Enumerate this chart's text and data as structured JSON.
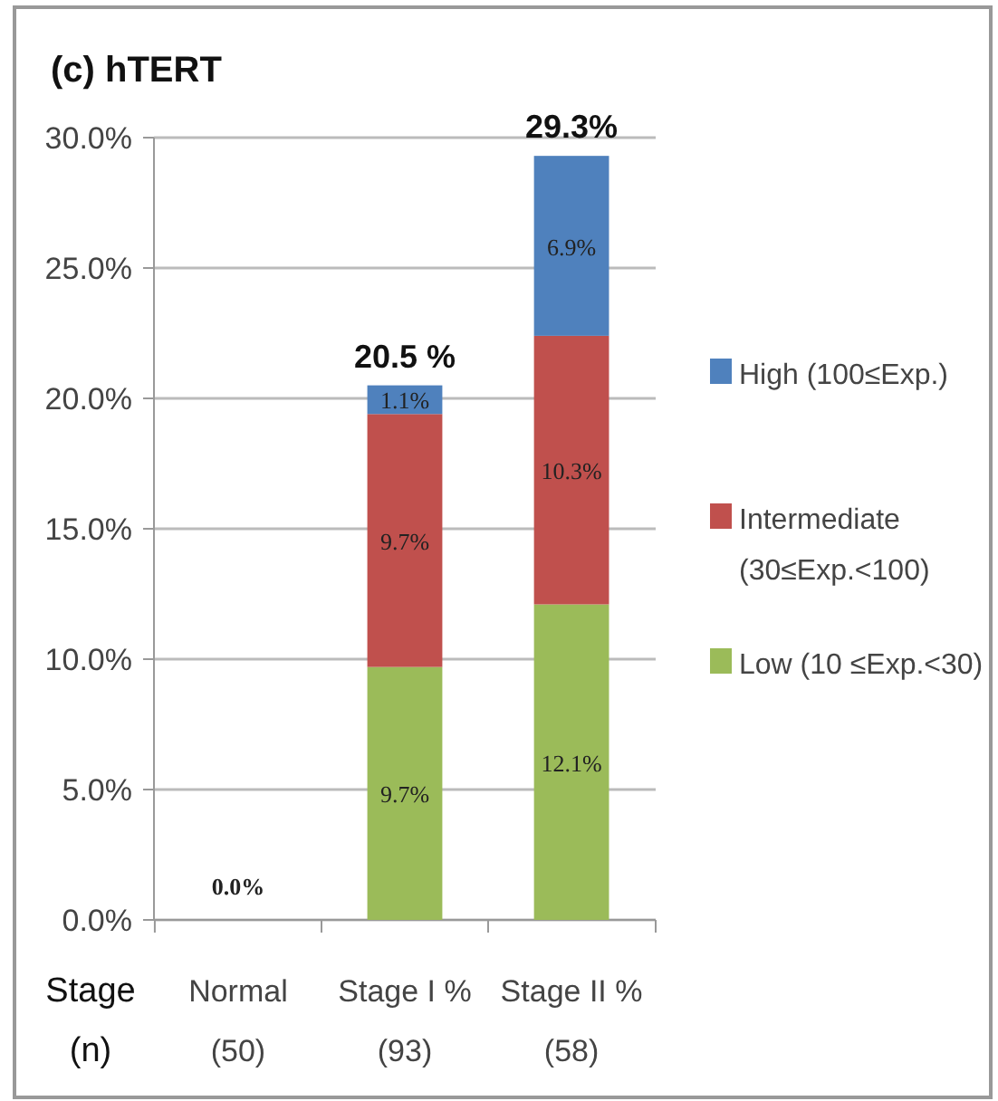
{
  "chart_data": {
    "type": "bar",
    "title": "(c) hTERT",
    "xlabel": "Stage\n(n)",
    "categories": [
      "Normal\n(50)",
      "Stage I %\n(93)",
      "Stage II %\n(58)"
    ],
    "stacked": true,
    "series": [
      {
        "name": "Low (10 ≤Exp.<30)",
        "color": "#9bbb59",
        "values": [
          0,
          9.7,
          12.1
        ],
        "value_labels": [
          "0.0%",
          "9.7%",
          "12.1%"
        ]
      },
      {
        "name": "Intermediate\n(30≤Exp.<100)",
        "color": "#c0504d",
        "values": [
          0,
          9.7,
          10.3
        ],
        "value_labels": [
          null,
          "9.7%",
          "10.3%"
        ]
      },
      {
        "name": "High (100≤Exp.)",
        "color": "#4f81bd",
        "values": [
          0,
          1.1,
          6.9
        ],
        "value_labels": [
          null,
          "1.1%",
          "6.9%"
        ]
      }
    ],
    "totals": [
      null,
      "20.5 %",
      "29.3%"
    ],
    "ylim": [
      0,
      30
    ],
    "yticks": [
      {
        "value": 0,
        "label": "0.0%"
      },
      {
        "value": 5,
        "label": "5.0%"
      },
      {
        "value": 10,
        "label": "10.0%"
      },
      {
        "value": 15,
        "label": "15.0%"
      },
      {
        "value": 20,
        "label": "20.0%"
      },
      {
        "value": 25,
        "label": "25.0%"
      },
      {
        "value": 30,
        "label": "30.0%"
      }
    ],
    "grid": "y",
    "legend": "right"
  }
}
